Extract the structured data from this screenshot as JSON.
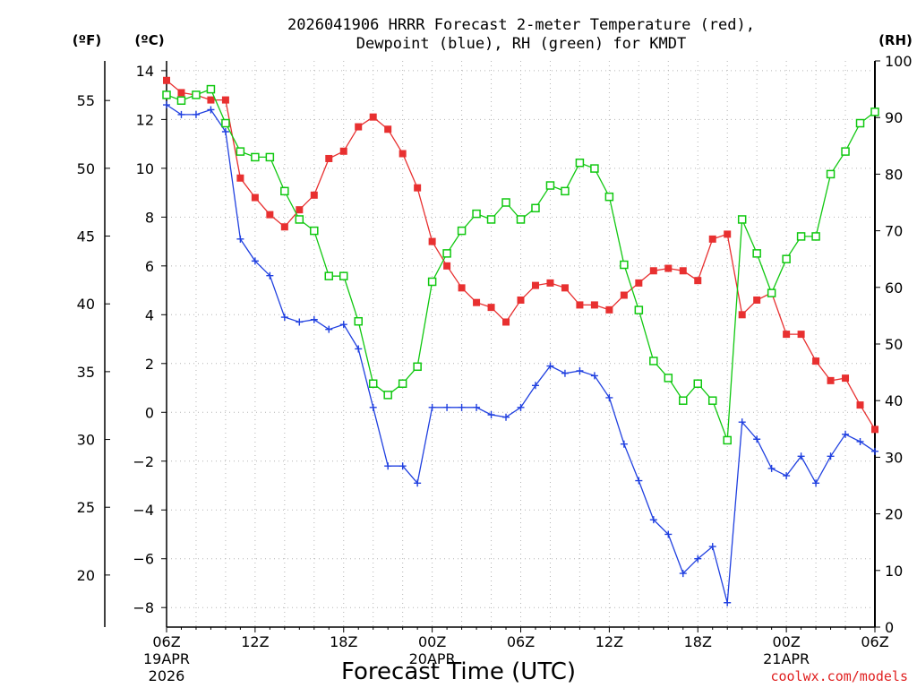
{
  "header": {
    "title_line1": "2026041906 HRRR Forecast 2-meter Temperature (red),",
    "title_line2": "Dewpoint (blue), RH (green) for KMDT"
  },
  "axes": {
    "left_outer_unit": "(ºF)",
    "left_inner_unit": "(ºC)",
    "right_unit": "(RH)",
    "xlabel": "Forecast Time (UTC)"
  },
  "credit": "coolwx.com/models",
  "colors": {
    "temperature": "#e83030",
    "dewpoint": "#2040e0",
    "rh": "#10c810",
    "grid": "#b4b4b4",
    "credit": "#e02020"
  },
  "chart_data": {
    "type": "line",
    "title": "2026041906 HRRR Forecast 2-meter Temperature (red), Dewpoint (blue), RH (green) for KMDT",
    "xlabel": "Forecast Time (UTC)",
    "x_hours": [
      0,
      1,
      2,
      3,
      4,
      5,
      6,
      7,
      8,
      9,
      10,
      11,
      12,
      13,
      14,
      15,
      16,
      17,
      18,
      19,
      20,
      21,
      22,
      23,
      24,
      25,
      26,
      27,
      28,
      29,
      30,
      31,
      32,
      33,
      34,
      35,
      36,
      37,
      38,
      39,
      40,
      41,
      42,
      43,
      44,
      45,
      46,
      47,
      48
    ],
    "x_ticks": [
      {
        "label": "06Z",
        "sub1": "19APR",
        "sub2": "2026"
      },
      {
        "label": "12Z",
        "sub1": "",
        "sub2": ""
      },
      {
        "label": "18Z",
        "sub1": "",
        "sub2": ""
      },
      {
        "label": "00Z",
        "sub1": "20APR",
        "sub2": ""
      },
      {
        "label": "06Z",
        "sub1": "",
        "sub2": ""
      },
      {
        "label": "12Z",
        "sub1": "",
        "sub2": ""
      },
      {
        "label": "18Z",
        "sub1": "",
        "sub2": ""
      },
      {
        "label": "00Z",
        "sub1": "21APR",
        "sub2": ""
      },
      {
        "label": "06Z",
        "sub1": "",
        "sub2": ""
      }
    ],
    "x_tick_hours": [
      0,
      6,
      12,
      18,
      24,
      30,
      36,
      42,
      48
    ],
    "celsius_axis": {
      "label": "(ºC)",
      "ticks": [
        14,
        12,
        10,
        8,
        6,
        4,
        2,
        0,
        -2,
        -4,
        -6,
        -8
      ],
      "ylim": [
        -8.8,
        14.4
      ]
    },
    "fahrenheit_axis": {
      "label": "(ºF)",
      "ticks": [
        55,
        50,
        45,
        40,
        35,
        30,
        25,
        20
      ]
    },
    "rh_axis": {
      "label": "(RH)",
      "ticks": [
        100,
        90,
        80,
        70,
        60,
        50,
        40,
        30,
        20,
        10,
        0
      ],
      "ylim": [
        0,
        100
      ]
    },
    "grid": true,
    "series": [
      {
        "name": "Temperature",
        "axis": "celsius",
        "marker": "filled-square",
        "values": [
          13.6,
          13.1,
          13.0,
          12.8,
          12.8,
          9.6,
          8.8,
          8.1,
          7.6,
          8.3,
          8.9,
          10.4,
          10.7,
          11.7,
          12.1,
          11.6,
          10.6,
          9.2,
          7.0,
          6.0,
          5.1,
          4.5,
          4.3,
          3.7,
          4.6,
          5.2,
          5.3,
          5.1,
          4.4,
          4.4,
          4.2,
          4.8,
          5.3,
          5.8,
          5.9,
          5.8,
          5.4,
          7.1,
          7.3,
          4.0,
          4.6,
          4.9,
          3.2,
          3.2,
          2.1,
          1.3,
          1.4,
          0.3,
          -0.7
        ]
      },
      {
        "name": "Dewpoint",
        "axis": "celsius",
        "marker": "plus",
        "values": [
          12.6,
          12.2,
          12.2,
          12.4,
          11.5,
          7.1,
          6.2,
          5.6,
          3.9,
          3.7,
          3.8,
          3.4,
          3.6,
          2.6,
          0.2,
          -2.2,
          -2.2,
          -2.9,
          0.2,
          0.2,
          0.2,
          0.2,
          -0.1,
          -0.2,
          0.2,
          1.1,
          1.9,
          1.6,
          1.7,
          1.5,
          0.6,
          -1.3,
          -2.8,
          -4.4,
          -5.0,
          -6.6,
          -6.0,
          -5.5,
          -7.8,
          -0.4,
          -1.1,
          -2.3,
          -2.6,
          -1.8,
          -2.9,
          -1.8,
          -0.9,
          -1.2,
          -1.6
        ]
      },
      {
        "name": "RH",
        "axis": "rh",
        "marker": "open-square",
        "values": [
          94,
          93,
          94,
          95,
          89,
          84,
          83,
          83,
          77,
          72,
          70,
          62,
          62,
          54,
          43,
          41,
          43,
          46,
          61,
          66,
          70,
          73,
          72,
          75,
          72,
          74,
          78,
          77,
          82,
          81,
          76,
          64,
          56,
          47,
          44,
          40,
          43,
          40,
          33,
          72,
          66,
          59,
          65,
          69,
          69,
          80,
          84,
          89,
          91
        ]
      }
    ]
  }
}
